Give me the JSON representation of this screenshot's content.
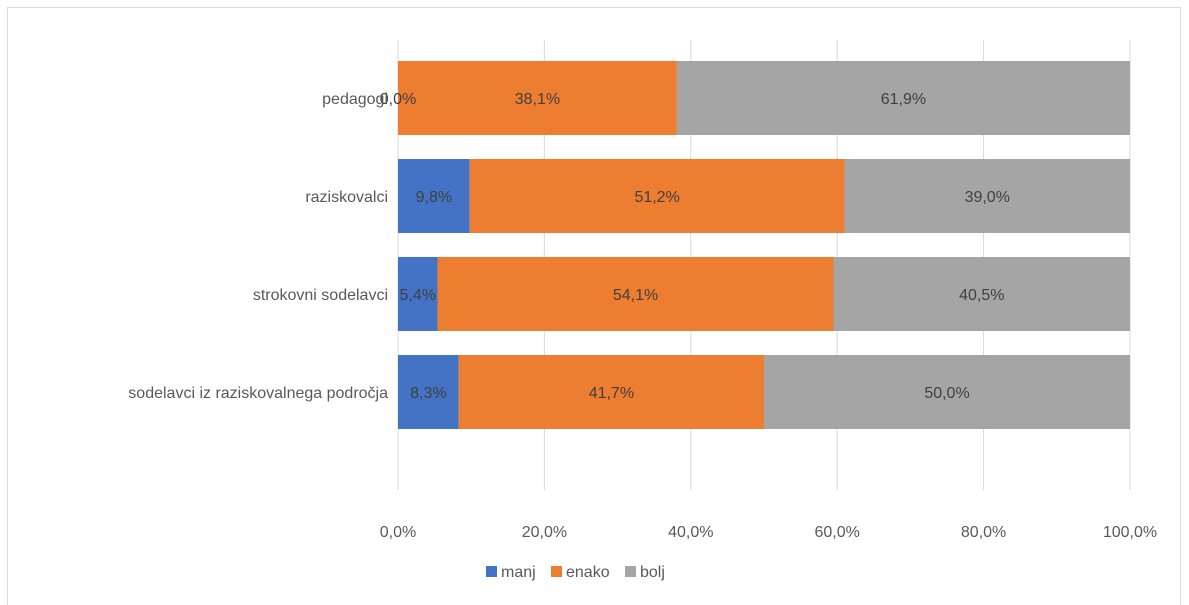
{
  "chart_data": {
    "type": "bar",
    "orientation": "horizontal",
    "stacked": "percent",
    "title": "",
    "xlabel": "",
    "ylabel": "",
    "categories": [
      "pedagogi",
      "raziskovalci",
      "strokovni sodelavci",
      "sodelavci iz raziskovalnega področja"
    ],
    "series": [
      {
        "name": "manj",
        "color": "#4472c4",
        "values": [
          0.0,
          9.8,
          5.4,
          8.3
        ],
        "labels": [
          "0,0%",
          "9,8%",
          "5,4%",
          "8,3%"
        ]
      },
      {
        "name": "enako",
        "color": "#ed7d31",
        "values": [
          38.1,
          51.2,
          54.1,
          41.7
        ],
        "labels": [
          "38,1%",
          "51,2%",
          "54,1%",
          "41,7%"
        ]
      },
      {
        "name": "bolj",
        "color": "#a5a5a5",
        "values": [
          61.9,
          39.0,
          40.5,
          50.0
        ],
        "labels": [
          "61,9%",
          "39,0%",
          "40,5%",
          "50,0%"
        ]
      }
    ],
    "xlim": [
      0,
      100
    ],
    "xticks": [
      0,
      20,
      40,
      60,
      80,
      100
    ],
    "xtick_labels": [
      "0,0%",
      "20,0%",
      "40,0%",
      "60,0%",
      "80,0%",
      "100,0%"
    ],
    "grid": true,
    "legend_position": "bottom"
  }
}
